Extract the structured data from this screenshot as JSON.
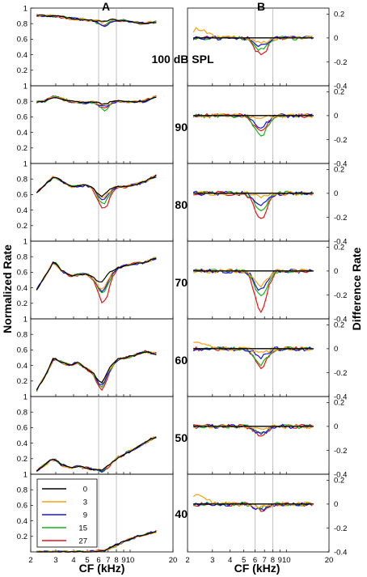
{
  "colors": {
    "0": "#000000",
    "3": "#f5a00f",
    "9": "#1616dc",
    "15": "#18b018",
    "27": "#e41414",
    "marker": "#b4b4b4"
  },
  "chart_data": {
    "type": "line",
    "panel_letters": [
      "A",
      "B"
    ],
    "xlabel": "CF (kHz)",
    "ylabel_left": "Normalized Rate",
    "ylabel_right": "Difference Rate",
    "x_ticks": [
      "2",
      "3",
      "4",
      "5",
      "6",
      "7",
      "8",
      "9",
      "10",
      "20"
    ],
    "x_tick_labels": [
      "2",
      "3",
      "4",
      "5",
      "6",
      "7",
      "8",
      "9",
      "10",
      "20"
    ],
    "x_tick_labels_display": [
      "2",
      "3",
      "4",
      "5",
      "6",
      "7",
      "8",
      "9",
      "10",
      "20"
    ],
    "x_range_khz": [
      2,
      20
    ],
    "x_scale": "log",
    "marker_lines_khz": [
      6,
      8
    ],
    "ylim_left": [
      0,
      1
    ],
    "y_ticks_left": [
      "0.2",
      "0.4",
      "0.6",
      "0.8",
      "1"
    ],
    "ylim_right": [
      -0.4,
      0.25
    ],
    "y_ticks_right": [
      "-0.4",
      "-0.2",
      "0",
      "0.2"
    ],
    "legend": {
      "position": "lower-left",
      "entries": [
        "0",
        "3",
        "9",
        "15",
        "27"
      ]
    },
    "levels": [
      {
        "label": "100 dB SPL",
        "level": 100,
        "A": {
          "base": [
            [
              2.2,
              0.91
            ],
            [
              2.5,
              0.9
            ],
            [
              2.8,
              0.9
            ],
            [
              3.2,
              0.89
            ],
            [
              3.7,
              0.87
            ],
            [
              4.2,
              0.86
            ],
            [
              4.8,
              0.85
            ],
            [
              5.4,
              0.84
            ],
            [
              6.0,
              0.83
            ],
            [
              6.4,
              0.82
            ],
            [
              6.8,
              0.83
            ],
            [
              7.3,
              0.86
            ],
            [
              8.0,
              0.84
            ],
            [
              9.0,
              0.84
            ],
            [
              10.5,
              0.82
            ],
            [
              12.5,
              0.8
            ],
            [
              15.0,
              0.82
            ]
          ],
          "dips": {
            "0": 0.0,
            "3": 0.0,
            "9": 0.06,
            "15": 0.05,
            "27": 0.05
          }
        },
        "B": {
          "dips": {
            "0": 0.0,
            "3": 0.05,
            "9": 0.07,
            "15": 0.1,
            "27": 0.14
          },
          "bumps": {
            "3": 0.08
          }
        }
      },
      {
        "label": "90",
        "level": 90,
        "A": {
          "base": [
            [
              2.2,
              0.79
            ],
            [
              2.5,
              0.8
            ],
            [
              2.9,
              0.86
            ],
            [
              3.3,
              0.83
            ],
            [
              3.8,
              0.8
            ],
            [
              4.3,
              0.79
            ],
            [
              4.9,
              0.78
            ],
            [
              5.5,
              0.79
            ],
            [
              6.0,
              0.78
            ],
            [
              6.5,
              0.76
            ],
            [
              7.0,
              0.78
            ],
            [
              7.5,
              0.8
            ],
            [
              8.2,
              0.8
            ],
            [
              9.2,
              0.8
            ],
            [
              10.5,
              0.79
            ],
            [
              12.5,
              0.8
            ],
            [
              15.0,
              0.86
            ]
          ],
          "dips": {
            "0": 0.0,
            "3": 0.02,
            "9": 0.04,
            "15": 0.08,
            "27": 0.05
          }
        },
        "B": {
          "dips": {
            "0": 0.0,
            "3": 0.02,
            "9": 0.1,
            "15": 0.17,
            "27": 0.14
          }
        }
      },
      {
        "label": "80",
        "level": 80,
        "A": {
          "base": [
            [
              2.2,
              0.62
            ],
            [
              2.6,
              0.75
            ],
            [
              2.9,
              0.83
            ],
            [
              3.3,
              0.77
            ],
            [
              3.8,
              0.7
            ],
            [
              4.3,
              0.71
            ],
            [
              4.9,
              0.72
            ],
            [
              5.5,
              0.68
            ],
            [
              6.0,
              0.6
            ],
            [
              6.4,
              0.57
            ],
            [
              6.8,
              0.62
            ],
            [
              7.4,
              0.68
            ],
            [
              8.2,
              0.7
            ],
            [
              9.2,
              0.7
            ],
            [
              10.5,
              0.72
            ],
            [
              12.5,
              0.76
            ],
            [
              15.0,
              0.84
            ]
          ],
          "dips": {
            "0": 0.0,
            "3": 0.03,
            "9": 0.06,
            "15": 0.1,
            "27": 0.18
          }
        },
        "B": {
          "dips": {
            "0": 0.0,
            "3": 0.02,
            "9": 0.1,
            "15": 0.14,
            "27": 0.22
          }
        }
      },
      {
        "label": "70",
        "level": 70,
        "A": {
          "base": [
            [
              2.2,
              0.38
            ],
            [
              2.6,
              0.58
            ],
            [
              2.9,
              0.74
            ],
            [
              3.3,
              0.62
            ],
            [
              3.8,
              0.55
            ],
            [
              4.3,
              0.57
            ],
            [
              4.9,
              0.58
            ],
            [
              5.5,
              0.53
            ],
            [
              6.0,
              0.48
            ],
            [
              6.4,
              0.48
            ],
            [
              6.8,
              0.56
            ],
            [
              7.4,
              0.62
            ],
            [
              8.2,
              0.66
            ],
            [
              9.2,
              0.68
            ],
            [
              10.5,
              0.71
            ],
            [
              12.5,
              0.72
            ],
            [
              15.0,
              0.78
            ]
          ],
          "dips": {
            "0": 0.0,
            "3": 0.1,
            "9": 0.14,
            "15": 0.18,
            "27": 0.3
          }
        },
        "B": {
          "dips": {
            "0": 0.0,
            "3": 0.12,
            "9": 0.16,
            "15": 0.2,
            "27": 0.33
          }
        }
      },
      {
        "label": "60",
        "level": 60,
        "A": {
          "base": [
            [
              2.2,
              0.08
            ],
            [
              2.6,
              0.3
            ],
            [
              2.9,
              0.5
            ],
            [
              3.3,
              0.44
            ],
            [
              3.8,
              0.4
            ],
            [
              4.3,
              0.44
            ],
            [
              4.9,
              0.36
            ],
            [
              5.5,
              0.3
            ],
            [
              6.0,
              0.2
            ],
            [
              6.4,
              0.18
            ],
            [
              6.8,
              0.3
            ],
            [
              7.4,
              0.4
            ],
            [
              8.2,
              0.48
            ],
            [
              9.2,
              0.5
            ],
            [
              10.5,
              0.52
            ],
            [
              12.5,
              0.58
            ],
            [
              15.0,
              0.55
            ]
          ],
          "dips": {
            "0": 0.0,
            "3": 0.02,
            "9": 0.04,
            "15": 0.06,
            "27": 0.1
          }
        },
        "B": {
          "dips": {
            "0": 0.0,
            "3": 0.04,
            "9": 0.07,
            "15": 0.13,
            "27": 0.15
          },
          "bumps": {
            "3": 0.06
          }
        }
      },
      {
        "label": "50",
        "level": 50,
        "A": {
          "base": [
            [
              2.2,
              0.04
            ],
            [
              2.6,
              0.14
            ],
            [
              2.9,
              0.2
            ],
            [
              3.3,
              0.12
            ],
            [
              3.8,
              0.08
            ],
            [
              4.3,
              0.1
            ],
            [
              4.9,
              0.08
            ],
            [
              5.5,
              0.06
            ],
            [
              6.0,
              0.06
            ],
            [
              6.4,
              0.05
            ],
            [
              6.8,
              0.1
            ],
            [
              7.4,
              0.14
            ],
            [
              8.2,
              0.22
            ],
            [
              9.2,
              0.26
            ],
            [
              10.5,
              0.32
            ],
            [
              12.5,
              0.4
            ],
            [
              15.0,
              0.48
            ]
          ],
          "dips": {
            "0": 0.0,
            "3": 0.01,
            "9": 0.02,
            "15": 0.02,
            "27": 0.03
          }
        },
        "B": {
          "dips": {
            "0": 0.0,
            "3": 0.03,
            "9": 0.06,
            "15": 0.05,
            "27": 0.07
          }
        }
      },
      {
        "label": "40",
        "level": 40,
        "A": {
          "base": [
            [
              2.2,
              0.0
            ],
            [
              2.6,
              0.0
            ],
            [
              3.0,
              0.0
            ],
            [
              3.5,
              0.0
            ],
            [
              4.0,
              0.0
            ],
            [
              4.5,
              0.0
            ],
            [
              5.0,
              0.0
            ],
            [
              5.5,
              0.0
            ],
            [
              6.0,
              0.01
            ],
            [
              6.5,
              0.02
            ],
            [
              7.0,
              0.04
            ],
            [
              7.6,
              0.07
            ],
            [
              8.3,
              0.1
            ],
            [
              9.2,
              0.14
            ],
            [
              10.5,
              0.18
            ],
            [
              12.5,
              0.22
            ],
            [
              15.0,
              0.26
            ]
          ],
          "dips": {
            "0": 0.0,
            "3": 0.0,
            "9": 0.0,
            "15": 0.0,
            "27": 0.0
          }
        },
        "B": {
          "dips": {
            "0": 0.0,
            "3": 0.02,
            "9": 0.04,
            "15": 0.03,
            "27": 0.05
          },
          "bumps": {
            "3": 0.08
          }
        }
      }
    ]
  }
}
